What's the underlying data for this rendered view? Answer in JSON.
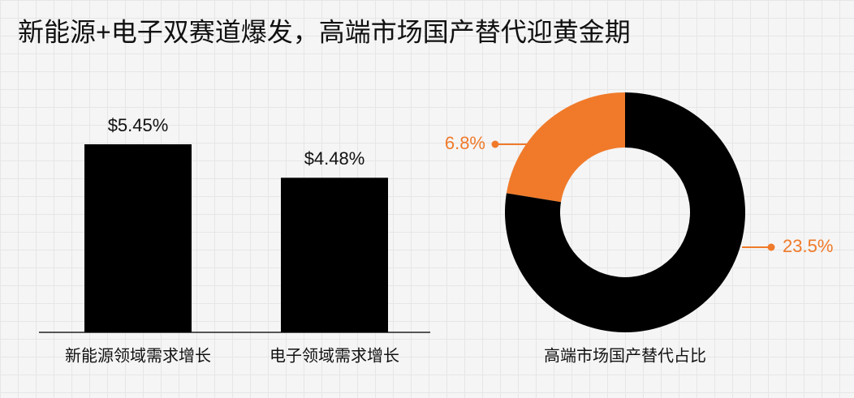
{
  "title": "新能源+电子双赛道爆发，高端市场国产替代迎黄金期",
  "chart_data": [
    {
      "type": "bar",
      "categories": [
        "新能源领域需求增长",
        "电子领域需求增长"
      ],
      "values": [
        5.45,
        4.48
      ],
      "value_labels": [
        "$5.45%",
        "$4.48%"
      ],
      "color": "#000000"
    },
    {
      "type": "donut",
      "title": "高端市场国产替代占比",
      "values": [
        6.8,
        23.5
      ],
      "value_labels": [
        "6.8%",
        "23.5%"
      ],
      "colors": [
        "#f07a2a",
        "#000000"
      ]
    }
  ]
}
